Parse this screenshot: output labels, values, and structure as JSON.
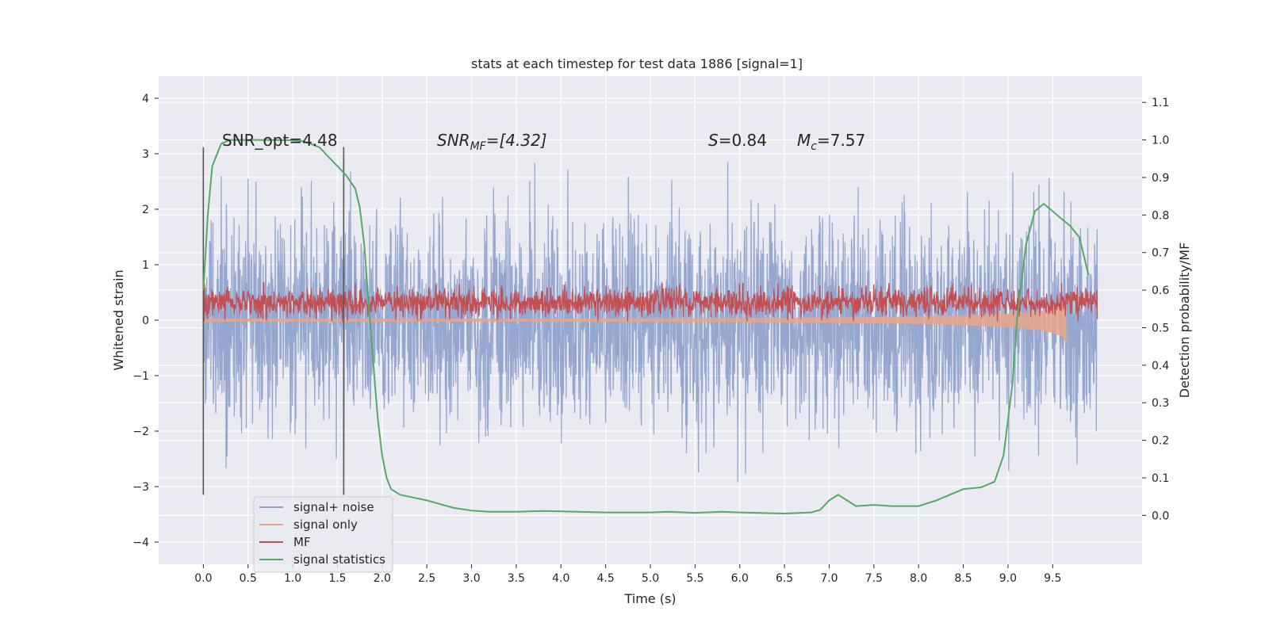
{
  "chart_data": {
    "type": "line",
    "title": "stats at each timestep for test data 1886 [signal=1]",
    "xlabel": "Time (s)",
    "ylabel": "Whitened strain",
    "y2label": "Detection probability/MF",
    "xlim": [
      -0.5,
      10.5
    ],
    "ylim": [
      -4.4,
      4.4
    ],
    "y2lim": [
      -0.13,
      1.17
    ],
    "x_ticks": [
      0.0,
      0.5,
      1.0,
      1.5,
      2.0,
      2.5,
      3.0,
      3.5,
      4.0,
      4.5,
      5.0,
      5.5,
      6.0,
      6.5,
      7.0,
      7.5,
      8.0,
      8.5,
      9.0,
      9.5
    ],
    "x_tick_labels": [
      "0.0",
      "0.5",
      "1.0",
      "1.5",
      "2.0",
      "2.5",
      "3.0",
      "3.5",
      "4.0",
      "4.5",
      "5.0",
      "5.5",
      "6.0",
      "6.5",
      "7.0",
      "7.5",
      "8.0",
      "8.5",
      "9.0",
      "9.5"
    ],
    "y_ticks": [
      4,
      3,
      2,
      1,
      0,
      -1,
      -2,
      -3,
      -4
    ],
    "y_tick_labels": [
      "4",
      "3",
      "2",
      "1",
      "0",
      "−1",
      "−2",
      "−3",
      "−4"
    ],
    "y2_ticks": [
      1.1,
      1.0,
      0.9,
      0.8,
      0.7,
      0.6,
      0.5,
      0.4,
      0.3,
      0.2,
      0.1,
      0.0
    ],
    "y2_tick_labels": [
      "1.1",
      "1.0",
      "0.9",
      "0.8",
      "0.7",
      "0.6",
      "0.5",
      "0.4",
      "0.3",
      "0.2",
      "0.1",
      "0.0"
    ],
    "grid": true,
    "legend_position": "lower-left",
    "annotations": {
      "snr_opt": "SNR_opt=4.48",
      "snr_mf_base": "SNR",
      "snr_mf_sub": "MF",
      "snr_mf_value": "=[4.32]",
      "s_sym": "S",
      "s_value": "=0.84",
      "mc_base": "M",
      "mc_sub": "c",
      "mc_value": "=7.57"
    },
    "vertical_markers": [
      0.0,
      1.57
    ],
    "series": [
      {
        "name": "signal+ noise",
        "color": "#8da0cb",
        "description_of_shape": "dense noise 0..10s",
        "x_range": [
          0.0,
          10.0
        ],
        "y_envelope": [
          -3.0,
          3.2
        ]
      },
      {
        "name": "signal only",
        "color": "#e8a58a",
        "x": [
          0.0,
          4.0,
          6.0,
          7.0,
          8.0,
          8.5,
          9.0,
          9.3,
          9.5,
          9.62,
          9.65
        ],
        "upper": [
          0.02,
          0.02,
          0.03,
          0.04,
          0.06,
          0.08,
          0.11,
          0.14,
          0.2,
          0.3,
          0.4
        ],
        "lower": [
          -0.02,
          -0.02,
          -0.03,
          -0.04,
          -0.06,
          -0.08,
          -0.12,
          -0.16,
          -0.22,
          -0.3,
          -0.42
        ]
      },
      {
        "name": "MF",
        "color": "#c44e52",
        "x_range": [
          0.0,
          10.0
        ],
        "y_band": [
          0.0,
          0.65
        ]
      },
      {
        "name": "signal statistics",
        "color": "#55a868",
        "x": [
          0.0,
          0.05,
          0.1,
          0.2,
          0.3,
          0.5,
          0.8,
          1.0,
          1.1,
          1.2,
          1.3,
          1.4,
          1.5,
          1.6,
          1.7,
          1.75,
          1.8,
          1.85,
          1.9,
          1.95,
          2.0,
          2.05,
          2.1,
          2.2,
          2.3,
          2.5,
          2.8,
          3.0,
          3.2,
          3.5,
          3.8,
          4.0,
          4.5,
          5.0,
          5.2,
          5.5,
          5.8,
          6.0,
          6.5,
          6.8,
          6.9,
          7.0,
          7.1,
          7.2,
          7.3,
          7.5,
          7.7,
          8.0,
          8.2,
          8.5,
          8.7,
          8.85,
          8.95,
          9.05,
          9.1,
          9.2,
          9.3,
          9.4,
          9.5,
          9.6,
          9.7,
          9.8,
          9.9
        ],
        "values": [
          0.6,
          0.8,
          0.93,
          0.99,
          1.0,
          1.0,
          1.0,
          0.999,
          0.997,
          0.99,
          0.98,
          0.955,
          0.93,
          0.905,
          0.87,
          0.82,
          0.72,
          0.56,
          0.41,
          0.26,
          0.16,
          0.1,
          0.07,
          0.055,
          0.05,
          0.04,
          0.02,
          0.013,
          0.01,
          0.01,
          0.012,
          0.011,
          0.008,
          0.008,
          0.01,
          0.007,
          0.01,
          0.008,
          0.005,
          0.008,
          0.015,
          0.04,
          0.055,
          0.04,
          0.025,
          0.028,
          0.025,
          0.025,
          0.04,
          0.07,
          0.075,
          0.09,
          0.16,
          0.35,
          0.52,
          0.72,
          0.81,
          0.83,
          0.81,
          0.79,
          0.77,
          0.74,
          0.64
        ]
      }
    ]
  }
}
